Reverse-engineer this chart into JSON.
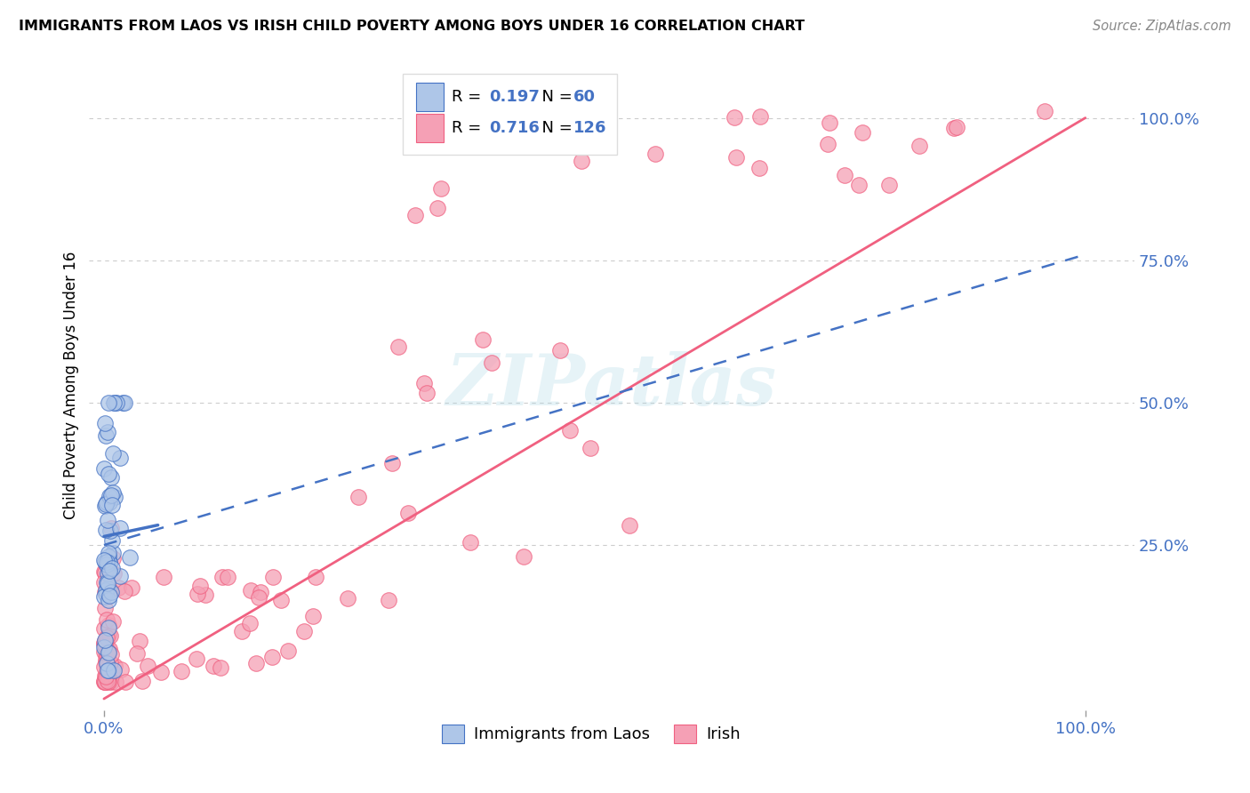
{
  "title": "IMMIGRANTS FROM LAOS VS IRISH CHILD POVERTY AMONG BOYS UNDER 16 CORRELATION CHART",
  "source": "Source: ZipAtlas.com",
  "ylabel": "Child Poverty Among Boys Under 16",
  "legend_label1": "Immigrants from Laos",
  "legend_label2": "Irish",
  "R1": "0.197",
  "N1": "60",
  "R2": "0.716",
  "N2": "126",
  "color_blue": "#aec6e8",
  "color_pink": "#f5a0b5",
  "line_color_blue": "#4472c4",
  "line_color_pink": "#f06080",
  "text_color_blue": "#4472c4",
  "background_color": "#ffffff",
  "grid_color": "#cccccc",
  "watermark": "ZIPatlas",
  "figsize": [
    14.06,
    8.92
  ]
}
